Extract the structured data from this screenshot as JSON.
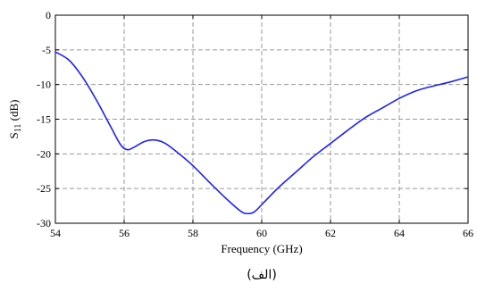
{
  "chart_data": {
    "type": "line",
    "xlabel": "Frequency (GHz)",
    "ylabel_main": "S",
    "ylabel_sub": "11",
    "ylabel_unit": " (dB)",
    "xlim": [
      54,
      66
    ],
    "ylim": [
      -30,
      0
    ],
    "x_ticks": [
      54,
      56,
      58,
      60,
      62,
      64,
      66
    ],
    "y_ticks": [
      0,
      -5,
      -10,
      -15,
      -20,
      -25,
      -30
    ],
    "x_tick_labels": [
      "54",
      "56",
      "58",
      "60",
      "62",
      "64",
      "66"
    ],
    "y_tick_labels": [
      "0",
      "-5",
      "-10",
      "-15",
      "-20",
      "-25",
      "-30"
    ],
    "grid": true,
    "series": [
      {
        "color": "#1f1fff",
        "x": [
          54.0,
          54.4,
          54.8,
          55.2,
          55.6,
          55.9,
          56.1,
          56.3,
          56.6,
          56.9,
          57.2,
          57.6,
          58.0,
          58.5,
          59.0,
          59.4,
          59.6,
          59.8,
          60.1,
          60.5,
          61.0,
          61.5,
          62.0,
          62.5,
          63.0,
          63.5,
          64.0,
          64.5,
          65.0,
          65.5,
          66.0
        ],
        "y": [
          -5.3,
          -6.5,
          -9.0,
          -12.3,
          -16.0,
          -18.7,
          -19.4,
          -19.0,
          -18.2,
          -18.0,
          -18.5,
          -20.0,
          -21.7,
          -24.2,
          -26.6,
          -28.3,
          -28.6,
          -28.3,
          -26.8,
          -24.8,
          -22.6,
          -20.4,
          -18.5,
          -16.6,
          -14.8,
          -13.4,
          -12.0,
          -10.9,
          -10.2,
          -9.6,
          -8.9
        ]
      }
    ]
  },
  "caption": "(الف)"
}
